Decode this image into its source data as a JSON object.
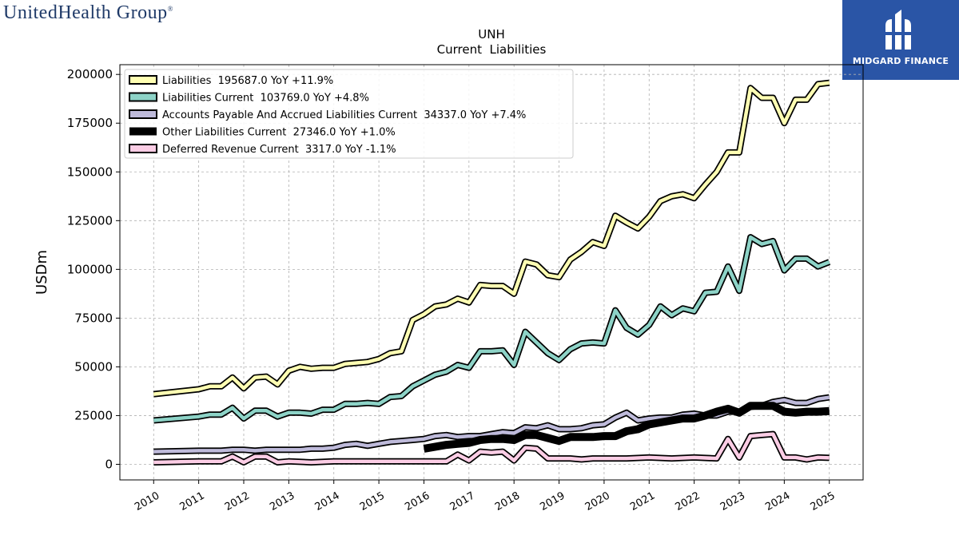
{
  "header": {
    "company_logo_text": "UnitedHealth Group",
    "company_logo_mark": "®",
    "brand_text": "MIDGARD FINANCE"
  },
  "chart_data": {
    "type": "line",
    "title": "UNH",
    "subtitle": "Current  Liabilities",
    "ylabel": "USDm",
    "xlabel": "",
    "ylim": [
      -8000,
      205000
    ],
    "xlim": [
      2009.25,
      2025.75
    ],
    "yticks": [
      0,
      25000,
      50000,
      75000,
      100000,
      125000,
      150000,
      175000,
      200000
    ],
    "xticks": [
      2010,
      2011,
      2012,
      2013,
      2014,
      2015,
      2016,
      2017,
      2018,
      2019,
      2020,
      2021,
      2022,
      2023,
      2024,
      2025
    ],
    "grid": true,
    "legend_position": "top-left",
    "series": [
      {
        "name": "Liabilities  195687.0 YoY +11.9%",
        "color": "#ffffb3",
        "points": [
          [
            2010.0,
            36000
          ],
          [
            2011.0,
            38500
          ],
          [
            2011.25,
            40000
          ],
          [
            2011.5,
            40000
          ],
          [
            2011.75,
            44500
          ],
          [
            2012.0,
            39000
          ],
          [
            2012.25,
            44500
          ],
          [
            2012.5,
            45000
          ],
          [
            2012.75,
            41000
          ],
          [
            2013.0,
            48000
          ],
          [
            2013.25,
            50000
          ],
          [
            2013.5,
            49000
          ],
          [
            2013.75,
            49500
          ],
          [
            2014.0,
            49500
          ],
          [
            2014.25,
            51500
          ],
          [
            2014.5,
            52000
          ],
          [
            2014.75,
            52500
          ],
          [
            2015.0,
            54000
          ],
          [
            2015.25,
            57000
          ],
          [
            2015.5,
            58000
          ],
          [
            2015.75,
            74000
          ],
          [
            2016.0,
            77000
          ],
          [
            2016.25,
            81000
          ],
          [
            2016.5,
            82000
          ],
          [
            2016.75,
            85000
          ],
          [
            2017.0,
            83000
          ],
          [
            2017.25,
            92000
          ],
          [
            2017.5,
            91500
          ],
          [
            2017.75,
            91500
          ],
          [
            2018.0,
            87500
          ],
          [
            2018.25,
            104000
          ],
          [
            2018.5,
            102500
          ],
          [
            2018.75,
            97000
          ],
          [
            2019.0,
            96000
          ],
          [
            2019.25,
            105000
          ],
          [
            2019.5,
            109000
          ],
          [
            2019.75,
            114000
          ],
          [
            2020.0,
            112000
          ],
          [
            2020.25,
            127500
          ],
          [
            2020.5,
            124000
          ],
          [
            2020.75,
            121000
          ],
          [
            2021.0,
            127000
          ],
          [
            2021.25,
            135000
          ],
          [
            2021.5,
            137500
          ],
          [
            2021.75,
            138500
          ],
          [
            2022.0,
            136500
          ],
          [
            2022.25,
            143500
          ],
          [
            2022.5,
            150000
          ],
          [
            2022.75,
            160000
          ],
          [
            2023.0,
            160000
          ],
          [
            2023.25,
            193000
          ],
          [
            2023.5,
            188000
          ],
          [
            2023.75,
            188000
          ],
          [
            2024.0,
            175000
          ],
          [
            2024.25,
            187000
          ],
          [
            2024.5,
            187000
          ],
          [
            2024.75,
            195000
          ],
          [
            2025.0,
            195687
          ]
        ]
      },
      {
        "name": "Liabilities Current  103769.0 YoY +4.8%",
        "color": "#8dd3c7",
        "points": [
          [
            2010.0,
            22500
          ],
          [
            2011.0,
            24500
          ],
          [
            2011.25,
            25500
          ],
          [
            2011.5,
            25500
          ],
          [
            2011.75,
            29000
          ],
          [
            2012.0,
            23500
          ],
          [
            2012.25,
            27500
          ],
          [
            2012.5,
            27500
          ],
          [
            2012.75,
            24500
          ],
          [
            2013.0,
            26500
          ],
          [
            2013.25,
            26500
          ],
          [
            2013.5,
            26000
          ],
          [
            2013.75,
            28000
          ],
          [
            2014.0,
            28000
          ],
          [
            2014.25,
            31000
          ],
          [
            2014.5,
            31000
          ],
          [
            2014.75,
            31500
          ],
          [
            2015.0,
            31000
          ],
          [
            2015.25,
            34500
          ],
          [
            2015.5,
            35000
          ],
          [
            2015.75,
            40000
          ],
          [
            2016.0,
            43000
          ],
          [
            2016.25,
            46000
          ],
          [
            2016.5,
            47500
          ],
          [
            2016.75,
            51000
          ],
          [
            2017.0,
            49500
          ],
          [
            2017.25,
            58000
          ],
          [
            2017.5,
            58000
          ],
          [
            2017.75,
            58500
          ],
          [
            2018.0,
            51000
          ],
          [
            2018.25,
            68000
          ],
          [
            2018.5,
            62500
          ],
          [
            2018.75,
            57000
          ],
          [
            2019.0,
            53500
          ],
          [
            2019.25,
            59000
          ],
          [
            2019.5,
            62000
          ],
          [
            2019.75,
            62500
          ],
          [
            2020.0,
            62000
          ],
          [
            2020.25,
            79000
          ],
          [
            2020.5,
            70000
          ],
          [
            2020.75,
            66500
          ],
          [
            2021.0,
            71500
          ],
          [
            2021.25,
            81000
          ],
          [
            2021.5,
            76500
          ],
          [
            2021.75,
            80000
          ],
          [
            2022.0,
            78500
          ],
          [
            2022.25,
            88000
          ],
          [
            2022.5,
            88500
          ],
          [
            2022.75,
            101500
          ],
          [
            2023.0,
            89000
          ],
          [
            2023.25,
            116500
          ],
          [
            2023.5,
            113000
          ],
          [
            2023.75,
            114500
          ],
          [
            2024.0,
            99500
          ],
          [
            2024.25,
            105500
          ],
          [
            2024.5,
            105500
          ],
          [
            2024.75,
            101500
          ],
          [
            2025.0,
            103769
          ]
        ]
      },
      {
        "name": "Accounts Payable And Accrued Liabilities Current  34337.0 YoY +7.4%",
        "color": "#bebada",
        "points": [
          [
            2010.0,
            6500
          ],
          [
            2011.0,
            7000
          ],
          [
            2011.5,
            7000
          ],
          [
            2011.75,
            7500
          ],
          [
            2012.0,
            7500
          ],
          [
            2012.25,
            7000
          ],
          [
            2012.5,
            7500
          ],
          [
            2012.75,
            7500
          ],
          [
            2013.0,
            7500
          ],
          [
            2013.25,
            7500
          ],
          [
            2013.5,
            8000
          ],
          [
            2013.75,
            8000
          ],
          [
            2014.0,
            8500
          ],
          [
            2014.25,
            10000
          ],
          [
            2014.5,
            10500
          ],
          [
            2014.75,
            9500
          ],
          [
            2015.0,
            10500
          ],
          [
            2015.25,
            11500
          ],
          [
            2015.5,
            12000
          ],
          [
            2015.75,
            12500
          ],
          [
            2016.0,
            13000
          ],
          [
            2016.25,
            14500
          ],
          [
            2016.5,
            15000
          ],
          [
            2016.75,
            14000
          ],
          [
            2017.0,
            14500
          ],
          [
            2017.25,
            14500
          ],
          [
            2017.5,
            15500
          ],
          [
            2017.75,
            16500
          ],
          [
            2018.0,
            16000
          ],
          [
            2018.25,
            19000
          ],
          [
            2018.5,
            18500
          ],
          [
            2018.75,
            20000
          ],
          [
            2019.0,
            18000
          ],
          [
            2019.25,
            18000
          ],
          [
            2019.5,
            18500
          ],
          [
            2019.75,
            20000
          ],
          [
            2020.0,
            20500
          ],
          [
            2020.25,
            24000
          ],
          [
            2020.5,
            26500
          ],
          [
            2020.75,
            22500
          ],
          [
            2021.0,
            23500
          ],
          [
            2021.25,
            24000
          ],
          [
            2021.5,
            24000
          ],
          [
            2021.75,
            25500
          ],
          [
            2022.0,
            26000
          ],
          [
            2022.25,
            25000
          ],
          [
            2022.5,
            25000
          ],
          [
            2022.75,
            27000
          ],
          [
            2023.0,
            27000
          ],
          [
            2023.25,
            29500
          ],
          [
            2023.5,
            30000
          ],
          [
            2023.75,
            32000
          ],
          [
            2024.0,
            33000
          ],
          [
            2024.25,
            31500
          ],
          [
            2024.5,
            31500
          ],
          [
            2024.75,
            33500
          ],
          [
            2025.0,
            34337
          ]
        ]
      },
      {
        "name": "Other Liabilities Current  27346.0 YoY +1.0%",
        "color": "#000000",
        "points": [
          [
            2016.0,
            8000
          ],
          [
            2016.5,
            10000
          ],
          [
            2016.75,
            10500
          ],
          [
            2017.0,
            11000
          ],
          [
            2017.25,
            12500
          ],
          [
            2017.5,
            13000
          ],
          [
            2017.75,
            13000
          ],
          [
            2018.0,
            12500
          ],
          [
            2018.25,
            15000
          ],
          [
            2018.5,
            15000
          ],
          [
            2018.75,
            13500
          ],
          [
            2019.0,
            12000
          ],
          [
            2019.25,
            14000
          ],
          [
            2019.5,
            14000
          ],
          [
            2019.75,
            14000
          ],
          [
            2020.0,
            14500
          ],
          [
            2020.25,
            14500
          ],
          [
            2020.5,
            17000
          ],
          [
            2020.75,
            18000
          ],
          [
            2021.0,
            20500
          ],
          [
            2021.25,
            21500
          ],
          [
            2021.5,
            22500
          ],
          [
            2021.75,
            23500
          ],
          [
            2022.0,
            23500
          ],
          [
            2022.25,
            25000
          ],
          [
            2022.5,
            27000
          ],
          [
            2022.75,
            28500
          ],
          [
            2023.0,
            26500
          ],
          [
            2023.25,
            30000
          ],
          [
            2023.5,
            30000
          ],
          [
            2023.75,
            30000
          ],
          [
            2024.0,
            27000
          ],
          [
            2024.25,
            26500
          ],
          [
            2024.5,
            27000
          ],
          [
            2024.75,
            27000
          ],
          [
            2025.0,
            27346
          ]
        ]
      },
      {
        "name": "Deferred Revenue Current  3317.0 YoY -1.1%",
        "color": "#fccde5",
        "points": [
          [
            2010.0,
            1000
          ],
          [
            2011.0,
            1500
          ],
          [
            2011.5,
            1500
          ],
          [
            2011.75,
            4000
          ],
          [
            2012.0,
            1000
          ],
          [
            2012.25,
            4000
          ],
          [
            2012.5,
            4000
          ],
          [
            2012.75,
            1000
          ],
          [
            2013.0,
            1500
          ],
          [
            2013.5,
            1000
          ],
          [
            2014.0,
            1500
          ],
          [
            2014.5,
            1500
          ],
          [
            2015.0,
            1500
          ],
          [
            2015.5,
            1500
          ],
          [
            2016.0,
            1500
          ],
          [
            2016.5,
            1500
          ],
          [
            2016.75,
            5000
          ],
          [
            2017.0,
            2000
          ],
          [
            2017.25,
            6500
          ],
          [
            2017.5,
            6000
          ],
          [
            2017.75,
            6500
          ],
          [
            2018.0,
            2000
          ],
          [
            2018.25,
            8500
          ],
          [
            2018.5,
            8000
          ],
          [
            2018.75,
            3000
          ],
          [
            2019.0,
            3000
          ],
          [
            2019.25,
            3000
          ],
          [
            2019.5,
            2500
          ],
          [
            2019.75,
            3000
          ],
          [
            2020.0,
            3000
          ],
          [
            2020.5,
            3000
          ],
          [
            2021.0,
            3500
          ],
          [
            2021.5,
            3000
          ],
          [
            2022.0,
            3500
          ],
          [
            2022.5,
            3000
          ],
          [
            2022.75,
            13000
          ],
          [
            2023.0,
            3500
          ],
          [
            2023.25,
            14500
          ],
          [
            2023.5,
            15000
          ],
          [
            2023.75,
            15500
          ],
          [
            2024.0,
            3500
          ],
          [
            2024.25,
            3500
          ],
          [
            2024.5,
            2500
          ],
          [
            2024.75,
            3500
          ],
          [
            2025.0,
            3317
          ]
        ]
      }
    ]
  }
}
